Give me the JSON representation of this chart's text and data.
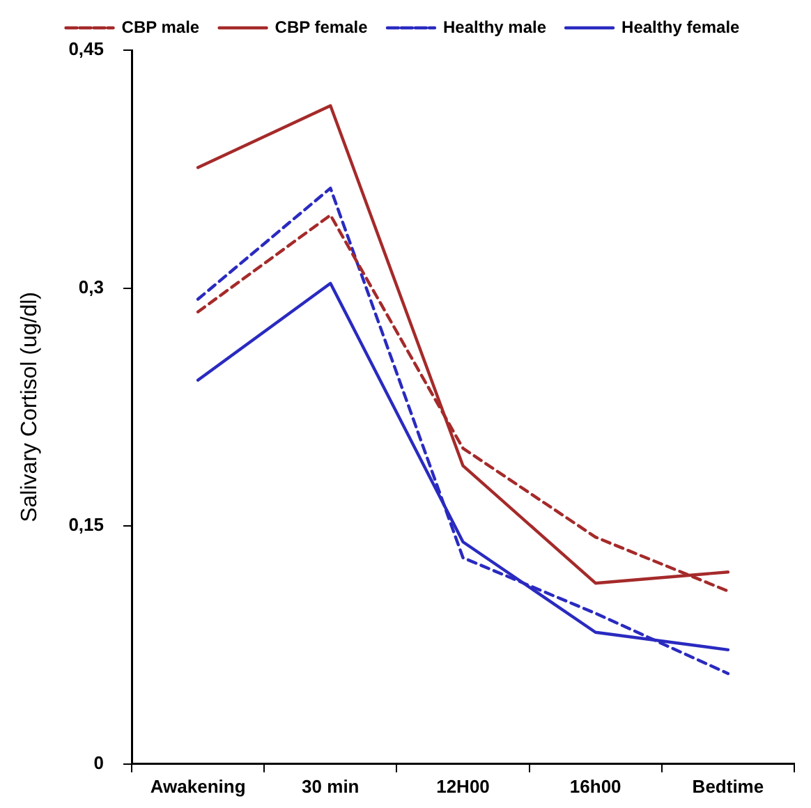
{
  "chart_data": {
    "type": "line",
    "ylabel": "Salivary Cortisol (ug/dl)",
    "categories": [
      "Awakening",
      "30 min",
      "12H00",
      "16h00",
      "Bedtime"
    ],
    "ylim": [
      0,
      0.45
    ],
    "yticks": [
      {
        "value": 0,
        "label": "0"
      },
      {
        "value": 0.15,
        "label": "0,15"
      },
      {
        "value": 0.3,
        "label": "0,3"
      },
      {
        "value": 0.45,
        "label": "0,45"
      }
    ],
    "grid": false,
    "legend": "top",
    "marker": "none",
    "series": [
      {
        "name": "CBP male",
        "color": "#a52a2a",
        "line_style": "dashed",
        "values": [
          0.285,
          0.346,
          0.199,
          0.143,
          0.109
        ]
      },
      {
        "name": "CBP female",
        "color": "#a52a2a",
        "line_style": "solid",
        "values": [
          0.376,
          0.415,
          0.188,
          0.114,
          0.121
        ]
      },
      {
        "name": "Healthy male",
        "color": "#2a2ac0",
        "line_style": "dashed",
        "values": [
          0.293,
          0.363,
          0.13,
          0.095,
          0.057
        ]
      },
      {
        "name": "Healthy female",
        "color": "#2a2ac0",
        "line_style": "solid",
        "values": [
          0.242,
          0.303,
          0.14,
          0.083,
          0.072
        ]
      }
    ]
  }
}
